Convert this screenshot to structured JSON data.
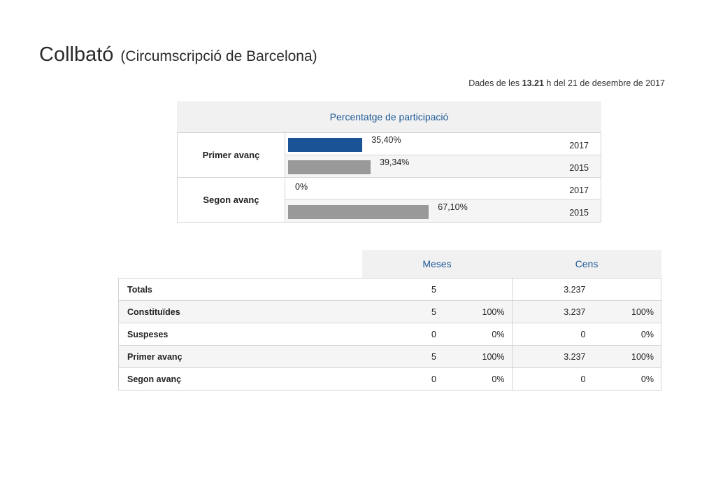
{
  "header": {
    "municipality": "Collbató",
    "district": "(Circumscripció de Barcelona)",
    "timestamp_prefix": "Dades de les",
    "timestamp_time": "13.21",
    "timestamp_suffix": "h del 21 de desembre de 2017"
  },
  "participation": {
    "title": "Percentatge de participació",
    "groups": [
      {
        "label": "Primer avanç",
        "rows": [
          {
            "year": "2017",
            "value": 35.4,
            "label": "35,40%"
          },
          {
            "year": "2015",
            "value": 39.34,
            "label": "39,34%"
          }
        ]
      },
      {
        "label": "Segon avanç",
        "rows": [
          {
            "year": "2017",
            "value": 0,
            "label": "0%"
          },
          {
            "year": "2015",
            "value": 67.1,
            "label": "67,10%"
          }
        ]
      }
    ],
    "colors": {
      "2017": "#1a5496",
      "2015": "#999999"
    }
  },
  "counts": {
    "headers": {
      "meses": "Meses",
      "cens": "Cens"
    },
    "rows": [
      {
        "label": "Totals",
        "meses": "5",
        "meses_pct": "",
        "cens": "3.237",
        "cens_pct": ""
      },
      {
        "label": "Constituïdes",
        "meses": "5",
        "meses_pct": "100%",
        "cens": "3.237",
        "cens_pct": "100%"
      },
      {
        "label": "Suspeses",
        "meses": "0",
        "meses_pct": "0%",
        "cens": "0",
        "cens_pct": "0%"
      },
      {
        "label": "Primer avanç",
        "meses": "5",
        "meses_pct": "100%",
        "cens": "3.237",
        "cens_pct": "100%"
      },
      {
        "label": "Segon avanç",
        "meses": "0",
        "meses_pct": "0%",
        "cens": "0",
        "cens_pct": "0%"
      }
    ]
  }
}
